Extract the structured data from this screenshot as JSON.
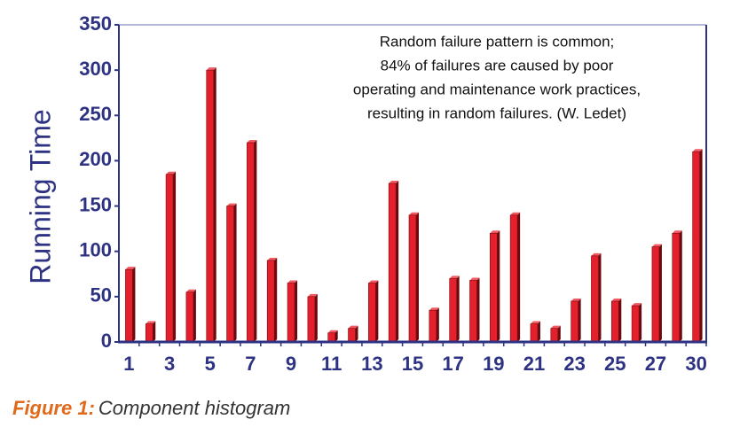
{
  "chart_data": {
    "type": "bar",
    "ylabel": "Running Time",
    "annotation": [
      "Random failure pattern is common;",
      "84% of failures are caused by poor",
      "operating and maintenance work practices,",
      "resulting in random failures. (W. Ledet)"
    ],
    "categories": [
      "1",
      null,
      "3",
      null,
      "5",
      null,
      "7",
      null,
      "9",
      null,
      "11",
      null,
      "13",
      null,
      "15",
      null,
      "17",
      null,
      "19",
      null,
      "21",
      null,
      "23",
      null,
      "25",
      null,
      "27",
      null,
      "30"
    ],
    "values": [
      80,
      20,
      185,
      55,
      300,
      150,
      220,
      90,
      65,
      50,
      10,
      15,
      65,
      175,
      140,
      35,
      70,
      68,
      120,
      140,
      20,
      15,
      45,
      95,
      45,
      40,
      105,
      120,
      210
    ],
    "color": "#e3202b",
    "ylim": [
      0,
      350
    ],
    "yticks": [
      0,
      50,
      100,
      150,
      200,
      250,
      300,
      350
    ]
  },
  "caption": {
    "label": "Figure 1:",
    "text": "Component histogram"
  }
}
